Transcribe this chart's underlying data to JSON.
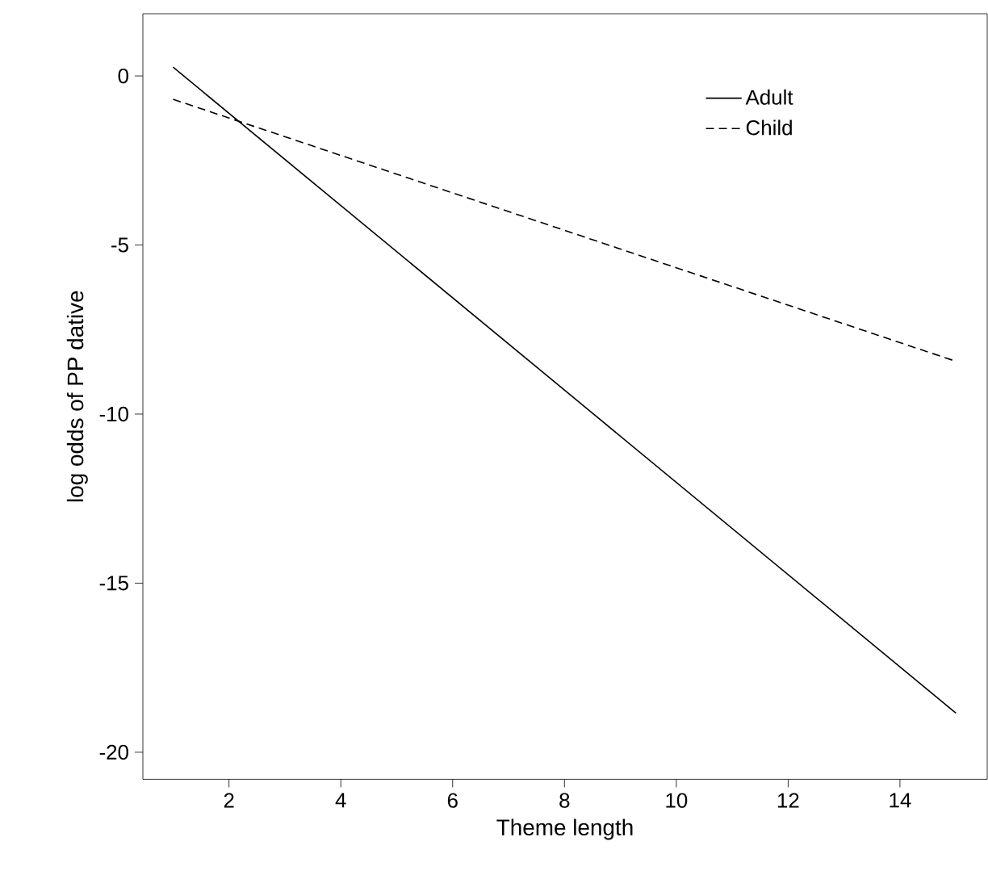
{
  "chart_data": {
    "type": "line",
    "xlabel": "Theme length",
    "ylabel": "log odds of PP dative",
    "xlim": [
      0.46,
      15.56
    ],
    "ylim": [
      -20.8,
      1.84
    ],
    "xticks": [
      2,
      4,
      6,
      8,
      10,
      12,
      14
    ],
    "yticks": [
      -20,
      -15,
      -10,
      -5,
      0
    ],
    "legend": "top right",
    "grid": false,
    "x": [
      1,
      15
    ],
    "series": [
      {
        "name": "Adult",
        "color": "#000000",
        "line_style": "solid",
        "values": [
          0.26,
          -18.84
        ]
      },
      {
        "name": "Child",
        "color": "#000000",
        "line_style": "dashed",
        "values": [
          -0.69,
          -8.44
        ]
      }
    ]
  }
}
